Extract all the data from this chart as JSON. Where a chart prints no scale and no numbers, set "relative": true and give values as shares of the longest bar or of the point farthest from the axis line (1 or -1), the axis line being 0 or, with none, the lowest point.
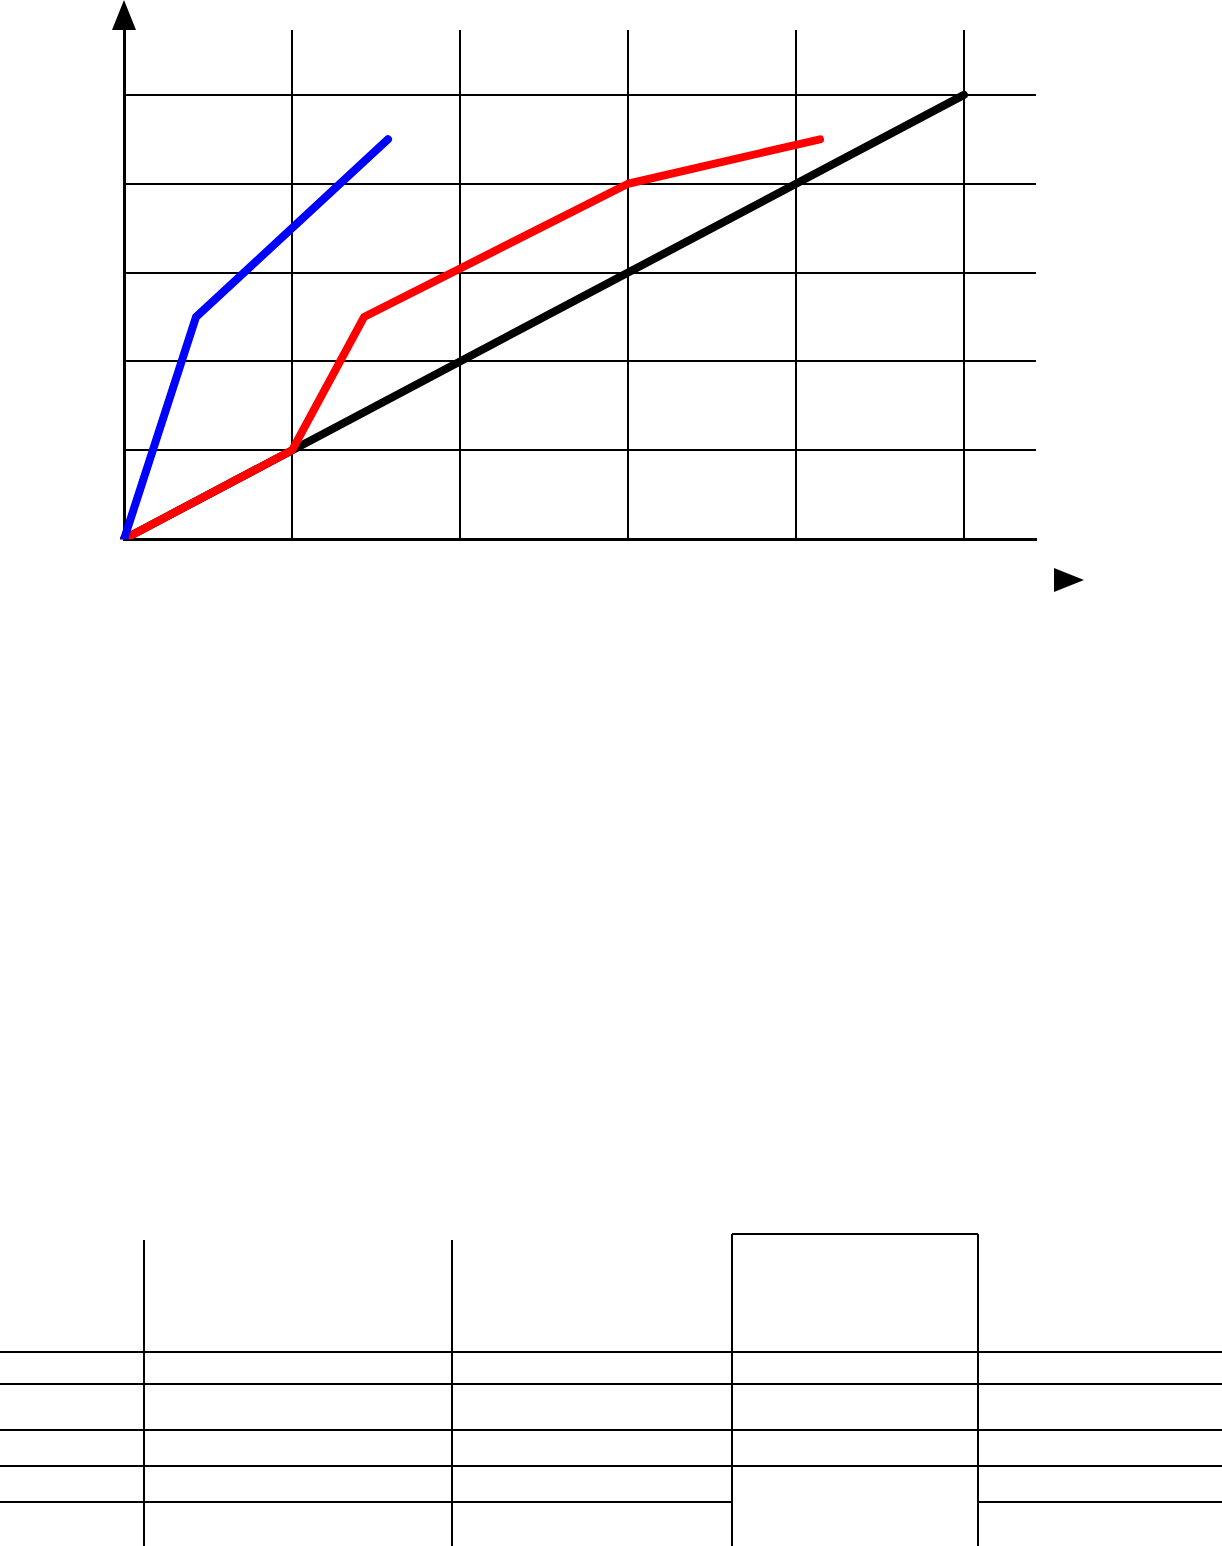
{
  "chart_data": {
    "type": "line",
    "relative": true,
    "grid": true,
    "legend": false,
    "marker": "none",
    "line_style": "solid",
    "categories": [
      null,
      null,
      null,
      null,
      null,
      null,
      null,
      null,
      null,
      null,
      null,
      null,
      null,
      null,
      null,
      null,
      null,
      null,
      null,
      null,
      null,
      null,
      null,
      null,
      null,
      null,
      null,
      null,
      null,
      null,
      null,
      null,
      null,
      null,
      null,
      null,
      null,
      null,
      null
    ],
    "series": [
      {
        "color": "#0000ff",
        "values": [
          0,
          null,
          null,
          0.5,
          null,
          null,
          null,
          null,
          null,
          null,
          null,
          0.9,
          null,
          null,
          null,
          null,
          null,
          null,
          null,
          null,
          null,
          null,
          null,
          null,
          null,
          null,
          null,
          null,
          null,
          null,
          null,
          null,
          null,
          null,
          null,
          null,
          null,
          null,
          null
        ]
      },
      {
        "color": "#ff0000",
        "values": [
          0,
          null,
          null,
          null,
          null,
          null,
          null,
          0.2,
          null,
          null,
          0.5,
          null,
          null,
          null,
          null,
          null,
          null,
          null,
          null,
          null,
          null,
          0.8,
          null,
          null,
          null,
          null,
          null,
          null,
          null,
          0.9,
          null,
          null,
          null,
          null,
          null,
          null,
          null,
          null,
          null
        ]
      },
      {
        "color": "#000000",
        "values": [
          0,
          null,
          null,
          null,
          null,
          null,
          null,
          null,
          null,
          null,
          null,
          null,
          null,
          null,
          null,
          null,
          null,
          null,
          null,
          null,
          null,
          null,
          null,
          null,
          null,
          null,
          null,
          null,
          null,
          null,
          null,
          null,
          null,
          null,
          null,
          1,
          null,
          null,
          null
        ]
      }
    ]
  }
}
